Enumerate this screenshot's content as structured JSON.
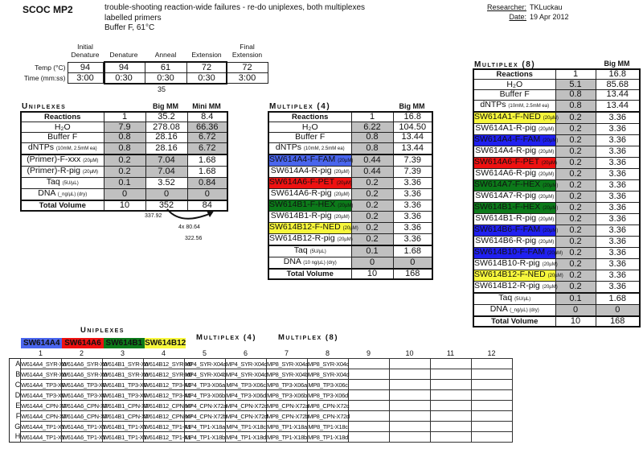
{
  "header": {
    "title": "SCOC MP2",
    "desc_line1": "trouble-shooting reaction-wide failures - re-do uniplexes, both multiplexes",
    "desc_line2": "labelled primers",
    "desc_line3": "Buffer F, 61°C",
    "researcher_label": "Researcher:",
    "researcher": "TKLuckau",
    "date_label": "Date:",
    "date": "19 Apr 2012"
  },
  "cycling": {
    "columns": [
      "Initial Denature",
      "Denature",
      "Anneal",
      "Extension",
      "Final Extension"
    ],
    "rows": [
      {
        "label": "Temp (°C)",
        "values": [
          "94",
          "94",
          "61",
          "72",
          "72"
        ]
      },
      {
        "label": "Time (mm:ss)",
        "values": [
          "3:00",
          "0:30",
          "0:30",
          "0:30",
          "3:00"
        ]
      }
    ],
    "cycles": "35"
  },
  "colors": {
    "FAM_light": "#4a66ee",
    "FAM": "#2020f0",
    "PET": "#ee1111",
    "HEX": "#0c7a1a",
    "NED": "#f7f73c",
    "shade": "#c0c0c0"
  },
  "uniplex": {
    "title": "Uniplexes",
    "col_headers": [
      "",
      "",
      "Big MM",
      "Mini MM"
    ],
    "rows": [
      {
        "label": "Reactions",
        "bold": true,
        "cells": [
          [
            "1",
            0
          ],
          [
            "35.2",
            0
          ],
          [
            "8.4",
            0
          ]
        ]
      },
      {
        "label": "H₂O",
        "cells": [
          [
            "7.9",
            1
          ],
          [
            "278.08",
            0
          ],
          [
            "66.36",
            1
          ]
        ]
      },
      {
        "label": "Buffer F",
        "cells": [
          [
            "0.8",
            1
          ],
          [
            "28.16",
            0
          ],
          [
            "6.72",
            1
          ]
        ]
      },
      {
        "label": "dNTPs",
        "note": "(10mM, 2.5mM ea)",
        "cells": [
          [
            "0.8",
            1
          ],
          [
            "28.16",
            0
          ],
          [
            "6.72",
            1
          ]
        ]
      },
      {
        "label": "(Primer)-F-xxx",
        "note": "(20µM)",
        "thick": true,
        "cells": [
          [
            "0.2",
            1
          ],
          [
            "7.04",
            1
          ],
          [
            "1.68",
            0
          ]
        ]
      },
      {
        "label": "(Primer)-R-pig",
        "note": "(20µM)",
        "cells": [
          [
            "0.2",
            1
          ],
          [
            "7.04",
            1
          ],
          [
            "1.68",
            0
          ]
        ]
      },
      {
        "label": "Taq",
        "note": "(5U/µL)",
        "cells": [
          [
            "0.1",
            1
          ],
          [
            "3.52",
            0
          ],
          [
            "0.84",
            1
          ]
        ]
      },
      {
        "label": "DNA",
        "note": "(_ng/µL) (dry)",
        "cells": [
          [
            "0",
            1
          ],
          [
            "0",
            1
          ],
          [
            "0",
            1
          ]
        ]
      },
      {
        "label": "Total Volume",
        "bold": true,
        "thick": true,
        "cells": [
          [
            "10",
            0
          ],
          [
            "352",
            0
          ],
          [
            "84",
            0
          ]
        ]
      }
    ],
    "annotations": {
      "a": "337.92",
      "b": "4x 80.64",
      "c": "322.56"
    }
  },
  "multiplex4": {
    "title": "Multiplex (4)",
    "col_headers": [
      "",
      "",
      "Big MM"
    ],
    "rows": [
      {
        "label": "Reactions",
        "bold": true,
        "cells": [
          [
            "1",
            0
          ],
          [
            "16.8",
            0
          ]
        ]
      },
      {
        "label": "H₂O",
        "cells": [
          [
            "6.22",
            1
          ],
          [
            "104.50",
            0
          ]
        ]
      },
      {
        "label": "Buffer F",
        "cells": [
          [
            "0.8",
            1
          ],
          [
            "13.44",
            0
          ]
        ]
      },
      {
        "label": "dNTPs",
        "note": "(10mM, 2.5mM ea)",
        "cells": [
          [
            "0.8",
            1
          ],
          [
            "13.44",
            0
          ]
        ]
      },
      {
        "label": "SW614A4-F-FAM",
        "note": "(20µM)",
        "color": "#4a66ee",
        "thick": true,
        "cells": [
          [
            "0.44",
            1
          ],
          [
            "7.39",
            0
          ]
        ]
      },
      {
        "label": "SW614A4-R-pig",
        "note": "(20µM)",
        "cells": [
          [
            "0.44",
            1
          ],
          [
            "7.39",
            0
          ]
        ]
      },
      {
        "label": "SW614A6-F-PET",
        "note": "(20µM)",
        "color": "#ee1111",
        "cells": [
          [
            "0.2",
            1
          ],
          [
            "3.36",
            0
          ]
        ]
      },
      {
        "label": "SW614A6-R-pig",
        "note": "(20µM)",
        "cells": [
          [
            "0.2",
            1
          ],
          [
            "3.36",
            0
          ]
        ]
      },
      {
        "label": "SW614B1-F-HEX",
        "note": "(20µM)",
        "color": "#0c7a1a",
        "cells": [
          [
            "0.2",
            1
          ],
          [
            "3.36",
            0
          ]
        ]
      },
      {
        "label": "SW614B1-R-pig",
        "note": "(20µM)",
        "cells": [
          [
            "0.2",
            1
          ],
          [
            "3.36",
            0
          ]
        ]
      },
      {
        "label": "SW614B12-F-NED",
        "note": "(20µM)",
        "color": "#f7f73c",
        "cells": [
          [
            "0.2",
            1
          ],
          [
            "3.36",
            0
          ]
        ]
      },
      {
        "label": "SW614B12-R-pig",
        "note": "(20µM)",
        "cells": [
          [
            "0.2",
            1
          ],
          [
            "3.36",
            0
          ]
        ]
      },
      {
        "label": "Taq",
        "note": "(5U/µL)",
        "thick": true,
        "cells": [
          [
            "0.1",
            1
          ],
          [
            "1.68",
            0
          ]
        ]
      },
      {
        "label": "DNA",
        "note": "(10 ng/µL) (dry)",
        "cells": [
          [
            "0",
            1
          ],
          [
            "0",
            1
          ]
        ]
      },
      {
        "label": "Total Volume",
        "bold": true,
        "thick": true,
        "cells": [
          [
            "10",
            0
          ],
          [
            "168",
            0
          ]
        ]
      }
    ]
  },
  "multiplex8": {
    "title": "Multiplex (8)",
    "col_headers": [
      "",
      "",
      "Big MM"
    ],
    "rows": [
      {
        "label": "Reactions",
        "bold": true,
        "cells": [
          [
            "1",
            0
          ],
          [
            "16.8",
            0
          ]
        ]
      },
      {
        "label": "H₂O",
        "cells": [
          [
            "5.1",
            1
          ],
          [
            "85.68",
            0
          ]
        ]
      },
      {
        "label": "Buffer F",
        "cells": [
          [
            "0.8",
            1
          ],
          [
            "13.44",
            0
          ]
        ]
      },
      {
        "label": "dNTPs",
        "note": "(10mM, 2.5mM ea)",
        "cells": [
          [
            "0.8",
            1
          ],
          [
            "13.44",
            0
          ]
        ]
      },
      {
        "label": "SW614A1-F-NED",
        "note": "(20µM)",
        "color": "#f7f73c",
        "thick": true,
        "cells": [
          [
            "0.2",
            1
          ],
          [
            "3.36",
            0
          ]
        ]
      },
      {
        "label": "SW614A1-R-pig",
        "note": "(20µM)",
        "cells": [
          [
            "0.2",
            1
          ],
          [
            "3.36",
            0
          ]
        ]
      },
      {
        "label": "SW614A4-F-FAM",
        "note": "(20µM)",
        "color": "#2020f0",
        "cells": [
          [
            "0.2",
            1
          ],
          [
            "3.36",
            0
          ]
        ]
      },
      {
        "label": "SW614A4-R-pig",
        "note": "(20µM)",
        "cells": [
          [
            "0.2",
            1
          ],
          [
            "3.36",
            0
          ]
        ]
      },
      {
        "label": "SW614A6-F-PET",
        "note": "(20µM)",
        "color": "#ee1111",
        "cells": [
          [
            "0.2",
            1
          ],
          [
            "3.36",
            0
          ]
        ]
      },
      {
        "label": "SW614A6-R-pig",
        "note": "(20µM)",
        "cells": [
          [
            "0.2",
            1
          ],
          [
            "3.36",
            0
          ]
        ]
      },
      {
        "label": "SW614A7-F-HEX",
        "note": "(20µM)",
        "color": "#0c7a1a",
        "cells": [
          [
            "0.2",
            1
          ],
          [
            "3.36",
            0
          ]
        ]
      },
      {
        "label": "SW614A7-R-pig",
        "note": "(20µM)",
        "cells": [
          [
            "0.2",
            1
          ],
          [
            "3.36",
            0
          ]
        ]
      },
      {
        "label": "SW614B1-F-HEX",
        "note": "(20µM)",
        "color": "#0c7a1a",
        "cells": [
          [
            "0.2",
            1
          ],
          [
            "3.36",
            0
          ]
        ]
      },
      {
        "label": "SW614B1-R-pig",
        "note": "(20µM)",
        "cells": [
          [
            "0.2",
            1
          ],
          [
            "3.36",
            0
          ]
        ]
      },
      {
        "label": "SW614B6-F-FAM",
        "note": "(20µM)",
        "color": "#2020f0",
        "cells": [
          [
            "0.2",
            1
          ],
          [
            "3.36",
            0
          ]
        ]
      },
      {
        "label": "SW614B6-R-pig",
        "note": "(20µM)",
        "cells": [
          [
            "0.2",
            1
          ],
          [
            "3.36",
            0
          ]
        ]
      },
      {
        "label": "SW614B10-F-FAM",
        "note": "(20µM)",
        "color": "#2020f0",
        "cells": [
          [
            "0.2",
            1
          ],
          [
            "3.36",
            0
          ]
        ]
      },
      {
        "label": "SW614B10-R-pig",
        "note": "(20µM)",
        "cells": [
          [
            "0.2",
            1
          ],
          [
            "3.36",
            0
          ]
        ]
      },
      {
        "label": "SW614B12-F-NED",
        "note": "(20µM)",
        "color": "#f7f73c",
        "cells": [
          [
            "0.2",
            1
          ],
          [
            "3.36",
            0
          ]
        ]
      },
      {
        "label": "SW614B12-R-pig",
        "note": "(20µM)",
        "cells": [
          [
            "0.2",
            1
          ],
          [
            "3.36",
            0
          ]
        ]
      },
      {
        "label": "Taq",
        "note": "(5U/µL)",
        "thick": true,
        "cells": [
          [
            "0.1",
            1
          ],
          [
            "1.68",
            0
          ]
        ]
      },
      {
        "label": "DNA",
        "note": "(_ng/µL) (dry)",
        "cells": [
          [
            "0",
            1
          ],
          [
            "0",
            1
          ]
        ]
      },
      {
        "label": "Total Volume",
        "bold": true,
        "thick": true,
        "cells": [
          [
            "10",
            0
          ],
          [
            "168",
            0
          ]
        ]
      }
    ]
  },
  "plate": {
    "uniplexes_title": "Uniplexes",
    "multiplex4_title": "Multiplex (4)",
    "multiplex8_title": "Multiplex (8)",
    "legend": [
      {
        "label": "SW614A4",
        "color": "#4a66ee"
      },
      {
        "label": "SW614A6",
        "color": "#ee1111"
      },
      {
        "label": "SW614B1",
        "color": "#0c7a1a"
      },
      {
        "label": "SW614B12",
        "color": "#f7f73c"
      }
    ],
    "columns": [
      "1",
      "2",
      "3",
      "4",
      "5",
      "6",
      "7",
      "8",
      "9",
      "10",
      "11",
      "12"
    ],
    "rows": [
      {
        "label": "A",
        "cells": [
          "W614A4_SYR-X0",
          "W614A6_SYR-X0",
          "W614B1_SYR-X0",
          "W614B12_SYR-X0",
          "MP4_SYR-X04a",
          "MP4_SYR-X04c",
          "MP8_SYR-X04a",
          "MP8_SYR-X04c",
          "",
          "",
          "",
          ""
        ]
      },
      {
        "label": "B",
        "cells": [
          "W614A4_SYR-X0",
          "W614A6_SYR-X0",
          "W614B1_SYR-X0",
          "W614B12_SYR-X0",
          "MP4_SYR-X04b",
          "MP4_SYR-X04d",
          "MP8_SYR-X04b",
          "MP8_SYR-X04d",
          "",
          "",
          "",
          ""
        ]
      },
      {
        "label": "C",
        "cells": [
          "W614A4_TP3-X0",
          "W614A6_TP3-X0",
          "W614B1_TP3-X0",
          "W614B12_TP3-X0",
          "MP4_TP3-X06a",
          "MP4_TP3-X06c",
          "MP8_TP3-X06a",
          "MP8_TP3-X06c",
          "",
          "",
          "",
          ""
        ]
      },
      {
        "label": "D",
        "cells": [
          "W614A4_TP3-X0",
          "W614A6_TP3-X0",
          "W614B1_TP3-X0",
          "W614B12_TP3-X0",
          "MP4_TP3-X06b",
          "MP4_TP3-X06d",
          "MP8_TP3-X06b",
          "MP8_TP3-X06d",
          "",
          "",
          "",
          ""
        ]
      },
      {
        "label": "E",
        "cells": [
          "W614A4_CPN-X7",
          "W614A6_CPN-X7",
          "W614B1_CPN-X7",
          "W614B12_CPN-X7",
          "MP4_CPN-X72a",
          "MP4_CPN-X72c",
          "MP8_CPN-X72a",
          "MP8_CPN-X72c",
          "",
          "",
          "",
          ""
        ]
      },
      {
        "label": "F",
        "cells": [
          "W614A4_CPN-X7",
          "W614A6_CPN-X7",
          "W614B1_CPN-X7",
          "W614B12_CPN-X7",
          "MP4_CPN-X72b",
          "MP4_CPN-X72d",
          "MP8_CPN-X72b",
          "MP8_CPN-X72d",
          "",
          "",
          "",
          ""
        ]
      },
      {
        "label": "G",
        "cells": [
          "W614A4_TP1-X1",
          "W614A6_TP1-X1",
          "W614B1_TP1-X1",
          "W614B12_TP1-X1",
          "MP4_TP1-X18a",
          "MP4_TP1-X18c",
          "MP8_TP1-X18a",
          "MP8_TP1-X18c",
          "",
          "",
          "",
          ""
        ]
      },
      {
        "label": "H",
        "cells": [
          "W614A4_TP1-X1",
          "W614A6_TP1-X1",
          "W614B1_TP1-X1",
          "W614B12_TP1-X1",
          "MP4_TP1-X18b",
          "MP4_TP1-X18d",
          "MP8_TP1-X18b",
          "MP8_TP1-X18d",
          "",
          "",
          "",
          ""
        ]
      }
    ]
  }
}
